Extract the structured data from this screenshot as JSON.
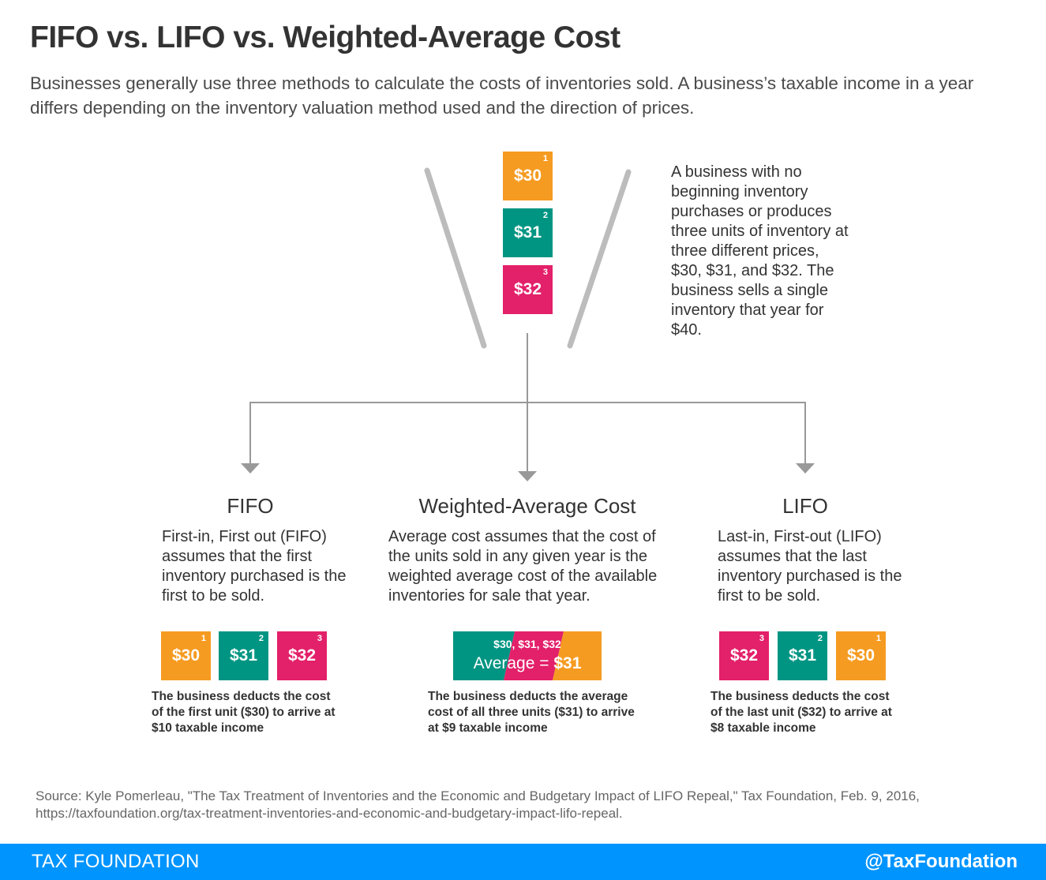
{
  "header": {
    "title": "FIFO vs. LIFO vs. Weighted-Average Cost",
    "subtitle": "Businesses generally use three methods to calculate the costs of inventories sold. A business’s taxable income in a year differs depending on the inventory valuation method used and the direction of prices."
  },
  "colors": {
    "orange": "#f59b21",
    "teal": "#009583",
    "pink": "#e3206a",
    "funnel_gray": "#bcbcbc",
    "connector_gray": "#999999",
    "footer_blue": "#0094ff"
  },
  "top_stack": {
    "units": [
      {
        "number": "1",
        "price": "$30",
        "color": "orange"
      },
      {
        "number": "2",
        "price": "$31",
        "color": "teal"
      },
      {
        "number": "3",
        "price": "$32",
        "color": "pink"
      }
    ],
    "description": "A business with no beginning inventory purchases or produces three units of inventory at three different prices, $30, $31, and $32. The business sells a single inventory that year for $40."
  },
  "methods": {
    "fifo": {
      "title": "FIFO",
      "description": "First-in, First out (FIFO) assumes that the first inventory purchased is the first to be sold.",
      "units": [
        {
          "number": "1",
          "price": "$30",
          "color": "orange"
        },
        {
          "number": "2",
          "price": "$31",
          "color": "teal"
        },
        {
          "number": "3",
          "price": "$32",
          "color": "pink"
        }
      ],
      "result": "The business deducts the cost of the first unit ($30) to arrive at $10 taxable income"
    },
    "wac": {
      "title": "Weighted-Average Cost",
      "description": "Average cost assumes that the cost of the units sold in any given year is the weighted average cost of the available inventories for sale that year.",
      "bar_top": "$30, $31, $32",
      "bar_label": "Average =",
      "bar_value": "$31",
      "result": "The business deducts the average cost of all three units ($31) to arrive at $9 taxable income"
    },
    "lifo": {
      "title": "LIFO",
      "description": "Last-in, First-out (LIFO) assumes that the last inventory purchased is the first to be sold.",
      "units": [
        {
          "number": "3",
          "price": "$32",
          "color": "pink"
        },
        {
          "number": "2",
          "price": "$31",
          "color": "teal"
        },
        {
          "number": "1",
          "price": "$30",
          "color": "orange"
        }
      ],
      "result": "The business deducts the cost of the last unit ($32) to arrive at $8 taxable income"
    }
  },
  "source": "Source: Kyle Pomerleau, \"The Tax Treatment of Inventories and the Economic and Budgetary Impact of LIFO Repeal,\" Tax Foundation, Feb. 9, 2016, https://taxfoundation.org/tax-treatment-inventories-and-economic-and-budgetary-impact-lifo-repeal.",
  "footer": {
    "left": "TAX FOUNDATION",
    "right": "@TaxFoundation"
  }
}
